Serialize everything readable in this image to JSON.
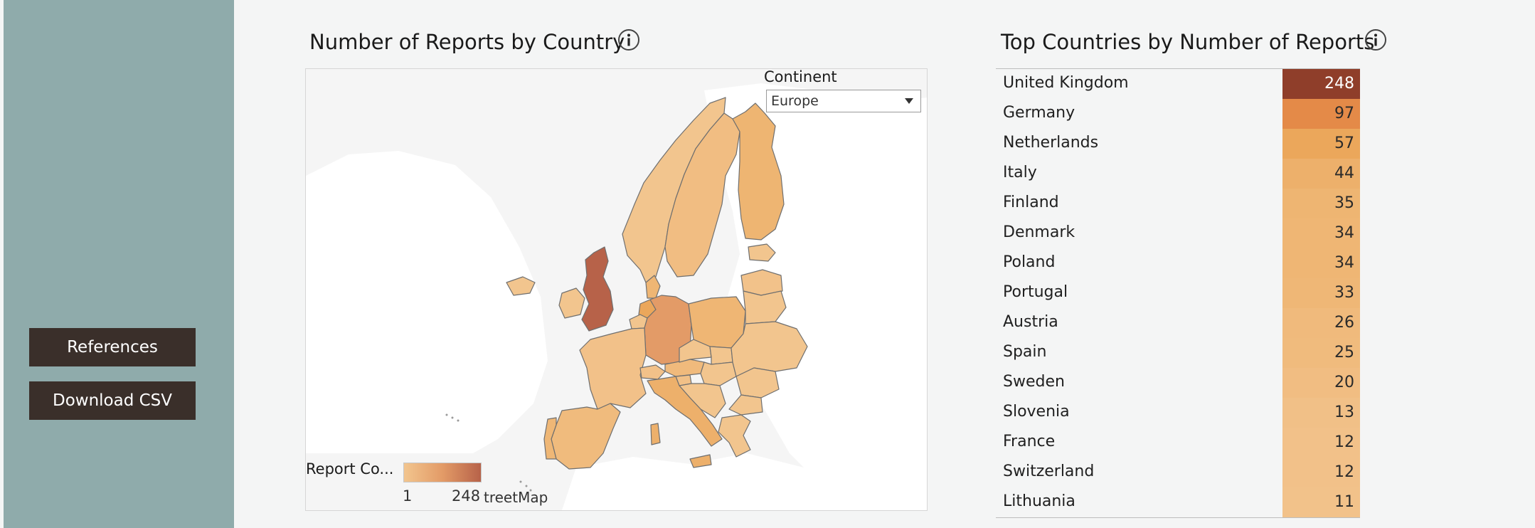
{
  "sidebar": {
    "buttons": [
      {
        "label": "References"
      },
      {
        "label": "Download CSV"
      }
    ]
  },
  "map_panel": {
    "title": "Number of Reports by Country",
    "filter": {
      "label": "Continent",
      "value": "Europe"
    },
    "legend": {
      "title": "Report Co...",
      "min": "1",
      "max": "248"
    },
    "attribution": "treetMap",
    "colors": {
      "low": "#f2c58e",
      "mid": "#e39b67",
      "high": "#b76249",
      "water": "#f5f5f5",
      "land": "#ffffff"
    }
  },
  "table_panel": {
    "title": "Top Countries by Number of Reports",
    "rows": [
      {
        "country": "United Kingdom",
        "value": "248",
        "color": "#8f3e2a"
      },
      {
        "country": "Germany",
        "value": "97",
        "color": "#e48a48"
      },
      {
        "country": "Netherlands",
        "value": "57",
        "color": "#eba75b"
      },
      {
        "country": "Italy",
        "value": "44",
        "color": "#edb06b"
      },
      {
        "country": "Finland",
        "value": "35",
        "color": "#eeb572"
      },
      {
        "country": "Denmark",
        "value": "34",
        "color": "#efb674"
      },
      {
        "country": "Poland",
        "value": "34",
        "color": "#efb674"
      },
      {
        "country": "Portugal",
        "value": "33",
        "color": "#efb776"
      },
      {
        "country": "Austria",
        "value": "26",
        "color": "#f0ba7c"
      },
      {
        "country": "Spain",
        "value": "25",
        "color": "#f0bb7d"
      },
      {
        "country": "Sweden",
        "value": "20",
        "color": "#f1bd82"
      },
      {
        "country": "Slovenia",
        "value": "13",
        "color": "#f1c087"
      },
      {
        "country": "France",
        "value": "12",
        "color": "#f2c189"
      },
      {
        "country": "Switzerland",
        "value": "12",
        "color": "#f2c189"
      },
      {
        "country": "Lithuania",
        "value": "11",
        "color": "#f2c28a"
      }
    ]
  }
}
